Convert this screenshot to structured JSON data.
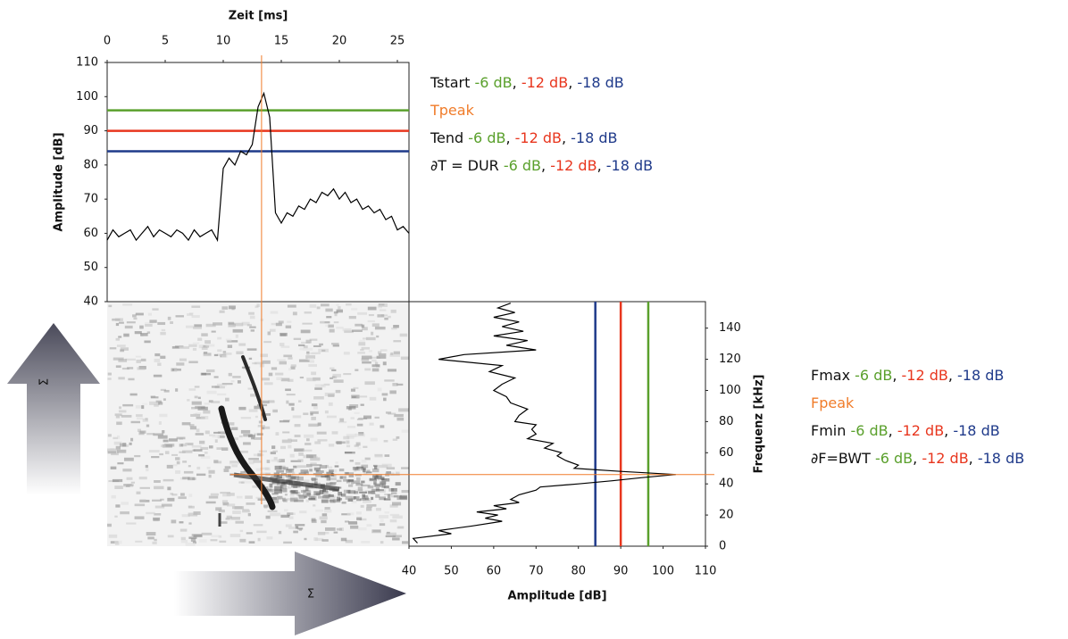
{
  "chart_data": [
    {
      "type": "line",
      "x_label": "Zeit [ms]",
      "y_label": "Amplitude [dB]",
      "x": [
        0,
        0.5,
        1,
        1.5,
        2,
        2.5,
        3,
        3.5,
        4,
        4.5,
        5,
        5.5,
        6,
        6.5,
        7,
        7.5,
        8,
        8.5,
        9,
        9.5,
        10,
        10.5,
        11,
        11.5,
        12,
        12.5,
        13,
        13.5,
        14,
        14.5,
        15,
        15.5,
        16,
        16.5,
        17,
        17.5,
        18,
        18.5,
        19,
        19.5,
        20,
        20.5,
        21,
        21.5,
        22,
        22.5,
        23,
        23.5,
        24,
        24.5,
        25,
        25.5,
        26
      ],
      "values": [
        58,
        61,
        59,
        60,
        61,
        58,
        60,
        62,
        59,
        61,
        60,
        59,
        61,
        60,
        58,
        61,
        59,
        60,
        61,
        58,
        79,
        82,
        80,
        84,
        83,
        86,
        97,
        101,
        94,
        66,
        63,
        66,
        65,
        68,
        67,
        70,
        69,
        72,
        71,
        73,
        70,
        72,
        69,
        70,
        67,
        68,
        66,
        67,
        64,
        65,
        61,
        62,
        60
      ],
      "color": "#000000",
      "xlim": [
        0,
        26
      ],
      "xticks": [
        0,
        5,
        10,
        15,
        20,
        25
      ],
      "ylim": [
        40,
        110
      ],
      "yticks": [
        40,
        50,
        60,
        70,
        80,
        90,
        100,
        110
      ],
      "hlines": [
        {
          "value": 96,
          "color": "#5aa02c"
        },
        {
          "value": 90,
          "color": "#e8361e"
        },
        {
          "value": 84,
          "color": "#1f3a8a"
        }
      ],
      "marker_x": 13.3,
      "marker_color": "#f07c2a"
    },
    {
      "type": "line-horizontal",
      "x_label": "Amplitude [dB]",
      "y_label": "Frequenz [kHz]",
      "y": [
        2,
        5,
        8,
        10,
        13,
        16,
        18,
        20,
        22,
        24,
        26,
        28,
        30,
        33,
        36,
        38,
        40,
        42,
        44,
        46,
        48,
        50,
        52,
        55,
        58,
        60,
        63,
        66,
        69,
        72,
        75,
        78,
        80,
        84,
        88,
        92,
        96,
        100,
        104,
        108,
        112,
        116,
        120,
        123,
        126,
        129,
        132,
        135,
        138,
        141,
        144,
        147,
        150,
        153,
        156
      ],
      "values": [
        42,
        41,
        50,
        47,
        55,
        62,
        58,
        61,
        56,
        63,
        60,
        66,
        64,
        66,
        70,
        71,
        80,
        88,
        95,
        103,
        90,
        79,
        80,
        77,
        75,
        76,
        72,
        74,
        68,
        70,
        69,
        70,
        65,
        66,
        68,
        64,
        63,
        60,
        62,
        65,
        59,
        62,
        47,
        53,
        70,
        63,
        68,
        60,
        67,
        62,
        66,
        60,
        65,
        61,
        64
      ],
      "color": "#000000",
      "xlim": [
        40,
        110
      ],
      "xticks": [
        40,
        50,
        60,
        70,
        80,
        90,
        100,
        110
      ],
      "ylim": [
        0,
        157
      ],
      "yticks": [
        0,
        20,
        40,
        60,
        80,
        100,
        120,
        140
      ],
      "vlines": [
        {
          "value": 84,
          "color": "#1f3a8a"
        },
        {
          "value": 90,
          "color": "#e8361e"
        },
        {
          "value": 96.5,
          "color": "#5aa02c"
        }
      ],
      "marker_y": 46,
      "marker_color": "#f07c2a"
    }
  ],
  "time_legend": [
    [
      {
        "text": "Tstart ",
        "color": "#111111"
      },
      {
        "text": "-6 dB",
        "color": "#5aa02c"
      },
      {
        "text": ", ",
        "color": "#111111"
      },
      {
        "text": "-12 dB",
        "color": "#e8361e"
      },
      {
        "text": ", ",
        "color": "#111111"
      },
      {
        "text": "-18 dB",
        "color": "#1f3a8a"
      }
    ],
    [
      {
        "text": "Tpeak",
        "color": "#f07c2a"
      }
    ],
    [
      {
        "text": "Tend ",
        "color": "#111111"
      },
      {
        "text": "-6 dB",
        "color": "#5aa02c"
      },
      {
        "text": ", ",
        "color": "#111111"
      },
      {
        "text": "-12 dB",
        "color": "#e8361e"
      },
      {
        "text": ", ",
        "color": "#111111"
      },
      {
        "text": "-18 dB",
        "color": "#1f3a8a"
      }
    ],
    [
      {
        "text": "∂T = DUR ",
        "color": "#111111"
      },
      {
        "text": "-6 dB",
        "color": "#5aa02c"
      },
      {
        "text": ", ",
        "color": "#111111"
      },
      {
        "text": "-12 dB",
        "color": "#e8361e"
      },
      {
        "text": ", ",
        "color": "#111111"
      },
      {
        "text": "-18 dB",
        "color": "#1f3a8a"
      }
    ]
  ],
  "freq_legend": [
    [
      {
        "text": "Fmax ",
        "color": "#111111"
      },
      {
        "text": "-6 dB",
        "color": "#5aa02c"
      },
      {
        "text": ", ",
        "color": "#111111"
      },
      {
        "text": "-12 dB",
        "color": "#e8361e"
      },
      {
        "text": ", ",
        "color": "#111111"
      },
      {
        "text": "-18 dB",
        "color": "#1f3a8a"
      }
    ],
    [
      {
        "text": "Fpeak",
        "color": "#f07c2a"
      }
    ],
    [
      {
        "text": "Fmin ",
        "color": "#111111"
      },
      {
        "text": "-6 dB",
        "color": "#5aa02c"
      },
      {
        "text": ", ",
        "color": "#111111"
      },
      {
        "text": "-12 dB",
        "color": "#e8361e"
      },
      {
        "text": ", ",
        "color": "#111111"
      },
      {
        "text": "-18 dB",
        "color": "#1f3a8a"
      }
    ],
    [
      {
        "text": "∂F=BWT ",
        "color": "#111111"
      },
      {
        "text": "-6 dB",
        "color": "#5aa02c"
      },
      {
        "text": ", ",
        "color": "#111111"
      },
      {
        "text": "-12 dB",
        "color": "#e8361e"
      },
      {
        "text": ", ",
        "color": "#111111"
      },
      {
        "text": "-18 dB",
        "color": "#1f3a8a"
      }
    ]
  ],
  "arrows": [
    {
      "label": "Σ"
    },
    {
      "label": "Σ"
    }
  ]
}
